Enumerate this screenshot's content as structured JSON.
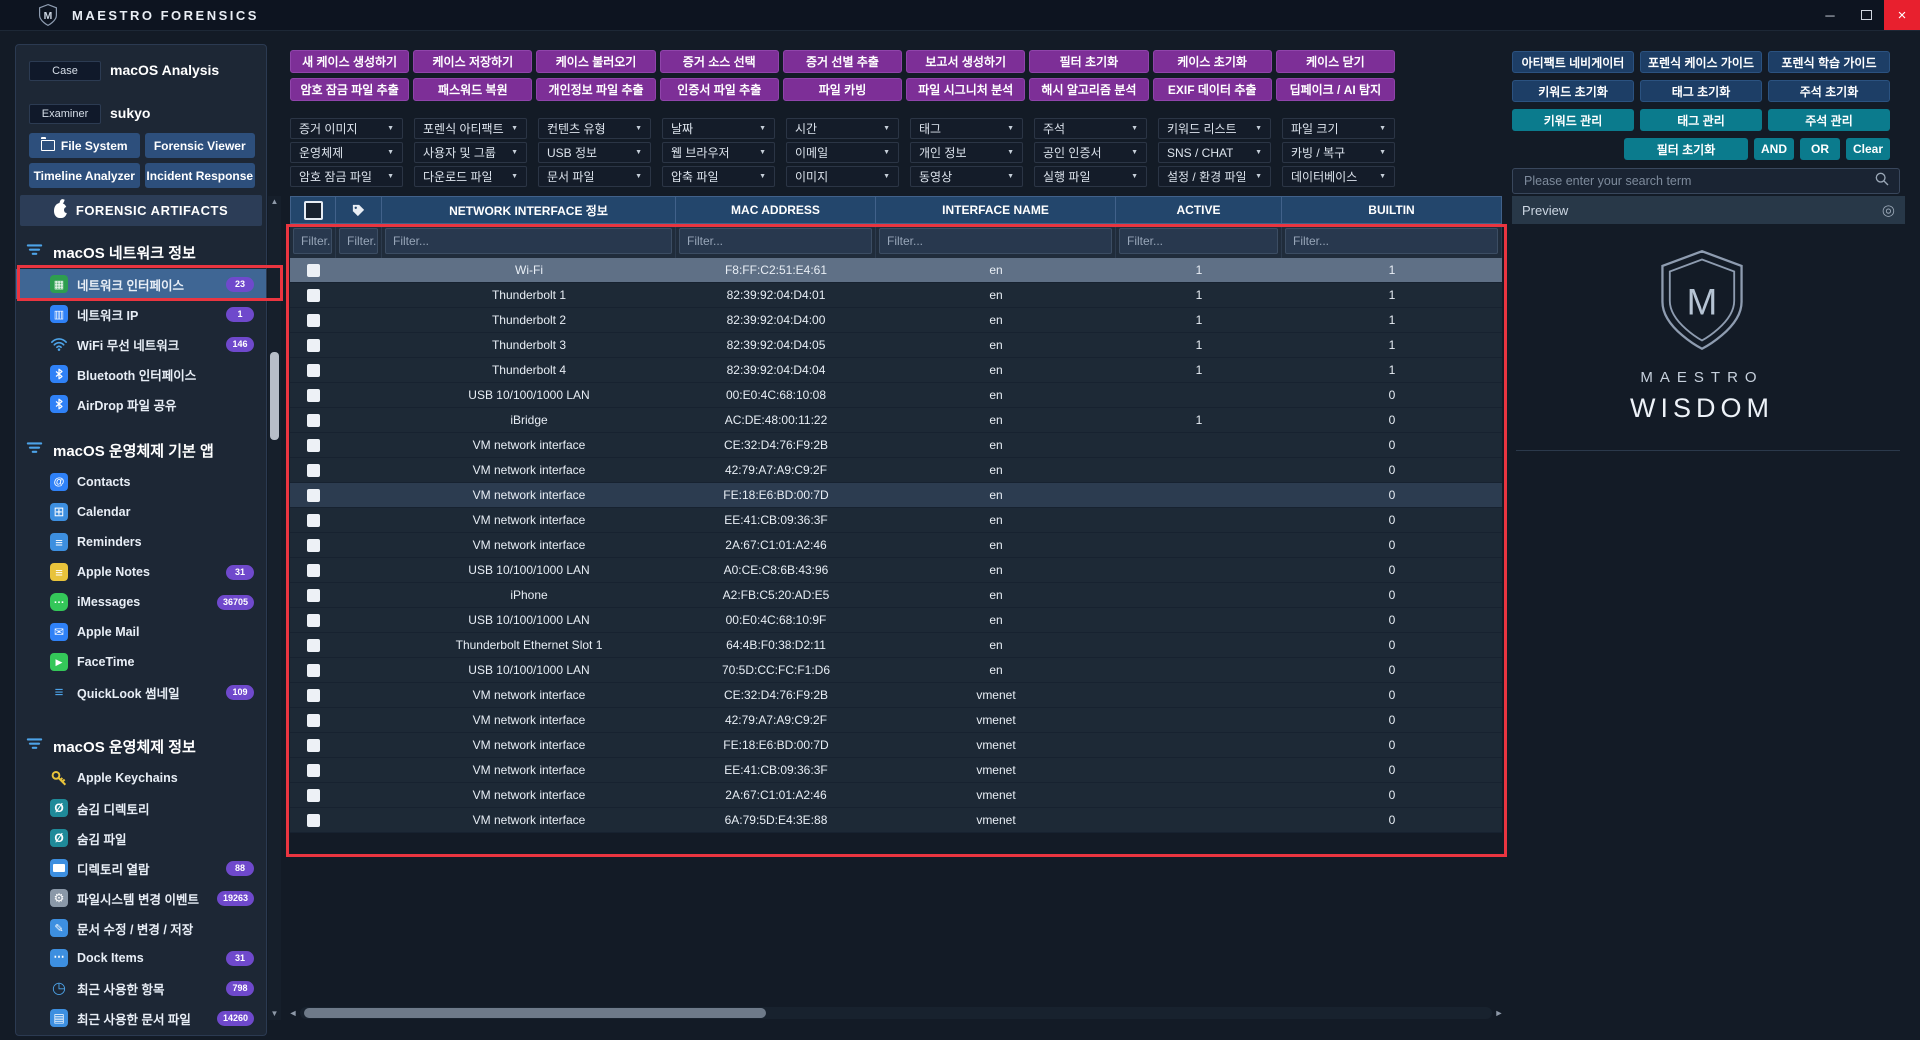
{
  "window": {
    "title": "MAESTRO FORENSICS"
  },
  "case_panel": {
    "case_label": "Case",
    "case_value": "macOS Analysis",
    "examiner_label": "Examiner",
    "examiner_value": "sukyo",
    "nav_buttons": [
      "File System",
      "Forensic Viewer",
      "Timeline Analyzer",
      "Incident Response"
    ]
  },
  "artifacts": {
    "header": "FORENSIC ARTIFACTS",
    "sections": [
      {
        "title": "macOS 네트워크 정보",
        "items": [
          {
            "label": "네트워크 인터페이스",
            "badge": "23",
            "icon": "network-card-icon",
            "selected": true
          },
          {
            "label": "네트워크 IP",
            "badge": "1",
            "icon": "network-ip-icon"
          },
          {
            "label": "WiFi 무선 네트워크",
            "badge": "146",
            "icon": "wifi-icon"
          },
          {
            "label": "Bluetooth 인터페이스",
            "icon": "bluetooth-icon"
          },
          {
            "label": "AirDrop 파일 공유",
            "icon": "airdrop-icon"
          }
        ]
      },
      {
        "title": "macOS 운영체제 기본 앱",
        "items": [
          {
            "label": "Contacts",
            "icon": "contacts-icon"
          },
          {
            "label": "Calendar",
            "icon": "calendar-icon"
          },
          {
            "label": "Reminders",
            "icon": "reminders-icon"
          },
          {
            "label": "Apple Notes",
            "badge": "31",
            "icon": "notes-icon"
          },
          {
            "label": "iMessages",
            "badge": "36705",
            "icon": "imessages-icon"
          },
          {
            "label": "Apple Mail",
            "icon": "mail-icon"
          },
          {
            "label": "FaceTime",
            "icon": "facetime-icon"
          },
          {
            "label": "QuickLook 썸네일",
            "badge": "109",
            "icon": "quicklook-icon"
          }
        ]
      },
      {
        "title": "macOS 운영체제 정보",
        "items": [
          {
            "label": "Apple Keychains",
            "icon": "keychain-icon"
          },
          {
            "label": "숨김 디렉토리",
            "icon": "hidden-directory-icon"
          },
          {
            "label": "숨김 파일",
            "icon": "hidden-file-icon"
          },
          {
            "label": "디렉토리 열람",
            "badge": "88",
            "icon": "directory-icon"
          },
          {
            "label": "파일시스템 변경 이벤트",
            "badge": "19263",
            "icon": "fs-events-icon"
          },
          {
            "label": "문서 수정 / 변경 / 저장",
            "icon": "doc-edit-icon"
          },
          {
            "label": "Dock Items",
            "badge": "31",
            "icon": "dock-icon"
          },
          {
            "label": "최근 사용한 항목",
            "badge": "798",
            "icon": "recent-items-icon"
          },
          {
            "label": "최근 사용한 문서 파일",
            "badge": "14260",
            "icon": "recent-docs-icon"
          }
        ]
      }
    ]
  },
  "toolbar": {
    "row1": [
      "새 케이스 생성하기",
      "케이스 저장하기",
      "케이스 불러오기",
      "증거 소스 선택",
      "증거 선별 추출",
      "보고서 생성하기",
      "필터 초기화",
      "케이스 초기화",
      "케이스 닫기"
    ],
    "row2": [
      "암호 잠금 파일 추출",
      "패스워드 복원",
      "개인정보 파일 추출",
      "인증서 파일 추출",
      "파일 카빙",
      "파일 시그니처 분석",
      "해시 알고리즘 분석",
      "EXIF 데이터 추출",
      "딥페이크 / AI 탐지"
    ]
  },
  "filters": {
    "row1": [
      "증거 이미지",
      "포렌식 아티팩트",
      "컨텐츠 유형",
      "날짜",
      "시간",
      "태그",
      "주석",
      "키워드 리스트",
      "파일 크기"
    ],
    "row2": [
      "운영체제",
      "사용자 및 그룹",
      "USB 정보",
      "웹 브라우저",
      "이메일",
      "개인 정보",
      "공인 인증서",
      "SNS / CHAT",
      "카빙 / 복구"
    ],
    "row3": [
      "암호 잠금 파일",
      "다운로드 파일",
      "문서 파일",
      "압축 파일",
      "이미지",
      "동영상",
      "실행 파일",
      "설정 / 환경 파일",
      "데이터베이스"
    ]
  },
  "right_panel": {
    "row1": [
      "아티팩트 네비게이터",
      "포렌식 케이스 가이드",
      "포렌식 학습 가이드"
    ],
    "row2": [
      "키워드 초기화",
      "태그 초기화",
      "주석 초기화"
    ],
    "row3": [
      "키워드 관리",
      "태그 관리",
      "주석 관리"
    ],
    "filter_reset": "필터 초기화",
    "and_label": "AND",
    "or_label": "OR",
    "clear_label": "Clear",
    "search_placeholder": "Please enter your search term",
    "preview_title": "Preview",
    "brand_name": "MAESTRO",
    "brand_product": "WISDOM"
  },
  "table": {
    "columns": [
      "NETWORK INTERFACE 정보",
      "MAC ADDRESS",
      "INTERFACE NAME",
      "ACTIVE",
      "BUILTIN"
    ],
    "filter_placeholder": "Filter...",
    "rows": [
      {
        "name": "Wi-Fi",
        "mac": "F8:FF:C2:51:E4:61",
        "iface": "en",
        "active": "1",
        "builtin": "1",
        "state": "selected"
      },
      {
        "name": "Thunderbolt 1",
        "mac": "82:39:92:04:D4:01",
        "iface": "en",
        "active": "1",
        "builtin": "1"
      },
      {
        "name": "Thunderbolt 2",
        "mac": "82:39:92:04:D4:00",
        "iface": "en",
        "active": "1",
        "builtin": "1"
      },
      {
        "name": "Thunderbolt 3",
        "mac": "82:39:92:04:D4:05",
        "iface": "en",
        "active": "1",
        "builtin": "1"
      },
      {
        "name": "Thunderbolt 4",
        "mac": "82:39:92:04:D4:04",
        "iface": "en",
        "active": "1",
        "builtin": "1"
      },
      {
        "name": "USB 10/100/1000 LAN",
        "mac": "00:E0:4C:68:10:08",
        "iface": "en",
        "active": "",
        "builtin": "0"
      },
      {
        "name": "iBridge",
        "mac": "AC:DE:48:00:11:22",
        "iface": "en",
        "active": "1",
        "builtin": "0"
      },
      {
        "name": "VM network interface",
        "mac": "CE:32:D4:76:F9:2B",
        "iface": "en",
        "active": "",
        "builtin": "0"
      },
      {
        "name": "VM network interface",
        "mac": "42:79:A7:A9:C9:2F",
        "iface": "en",
        "active": "",
        "builtin": "0"
      },
      {
        "name": "VM network interface",
        "mac": "FE:18:E6:BD:00:7D",
        "iface": "en",
        "active": "",
        "builtin": "0",
        "state": "hover"
      },
      {
        "name": "VM network interface",
        "mac": "EE:41:CB:09:36:3F",
        "iface": "en",
        "active": "",
        "builtin": "0"
      },
      {
        "name": "VM network interface",
        "mac": "2A:67:C1:01:A2:46",
        "iface": "en",
        "active": "",
        "builtin": "0"
      },
      {
        "name": "USB 10/100/1000 LAN",
        "mac": "A0:CE:C8:6B:43:96",
        "iface": "en",
        "active": "",
        "builtin": "0"
      },
      {
        "name": "iPhone",
        "mac": "A2:FB:C5:20:AD:E5",
        "iface": "en",
        "active": "",
        "builtin": "0"
      },
      {
        "name": "USB 10/100/1000 LAN",
        "mac": "00:E0:4C:68:10:9F",
        "iface": "en",
        "active": "",
        "builtin": "0"
      },
      {
        "name": "Thunderbolt Ethernet Slot 1",
        "mac": "64:4B:F0:38:D2:11",
        "iface": "en",
        "active": "",
        "builtin": "0"
      },
      {
        "name": "USB 10/100/1000 LAN",
        "mac": "70:5D:CC:FC:F1:D6",
        "iface": "en",
        "active": "",
        "builtin": "0"
      },
      {
        "name": "VM network interface",
        "mac": "CE:32:D4:76:F9:2B",
        "iface": "vmenet",
        "active": "",
        "builtin": "0"
      },
      {
        "name": "VM network interface",
        "mac": "42:79:A7:A9:C9:2F",
        "iface": "vmenet",
        "active": "",
        "builtin": "0"
      },
      {
        "name": "VM network interface",
        "mac": "FE:18:E6:BD:00:7D",
        "iface": "vmenet",
        "active": "",
        "builtin": "0"
      },
      {
        "name": "VM network interface",
        "mac": "EE:41:CB:09:36:3F",
        "iface": "vmenet",
        "active": "",
        "builtin": "0"
      },
      {
        "name": "VM network interface",
        "mac": "2A:67:C1:01:A2:46",
        "iface": "vmenet",
        "active": "",
        "builtin": "0"
      },
      {
        "name": "VM network interface",
        "mac": "6A:79:5D:E4:3E:88",
        "iface": "vmenet",
        "active": "",
        "builtin": "0"
      }
    ]
  }
}
